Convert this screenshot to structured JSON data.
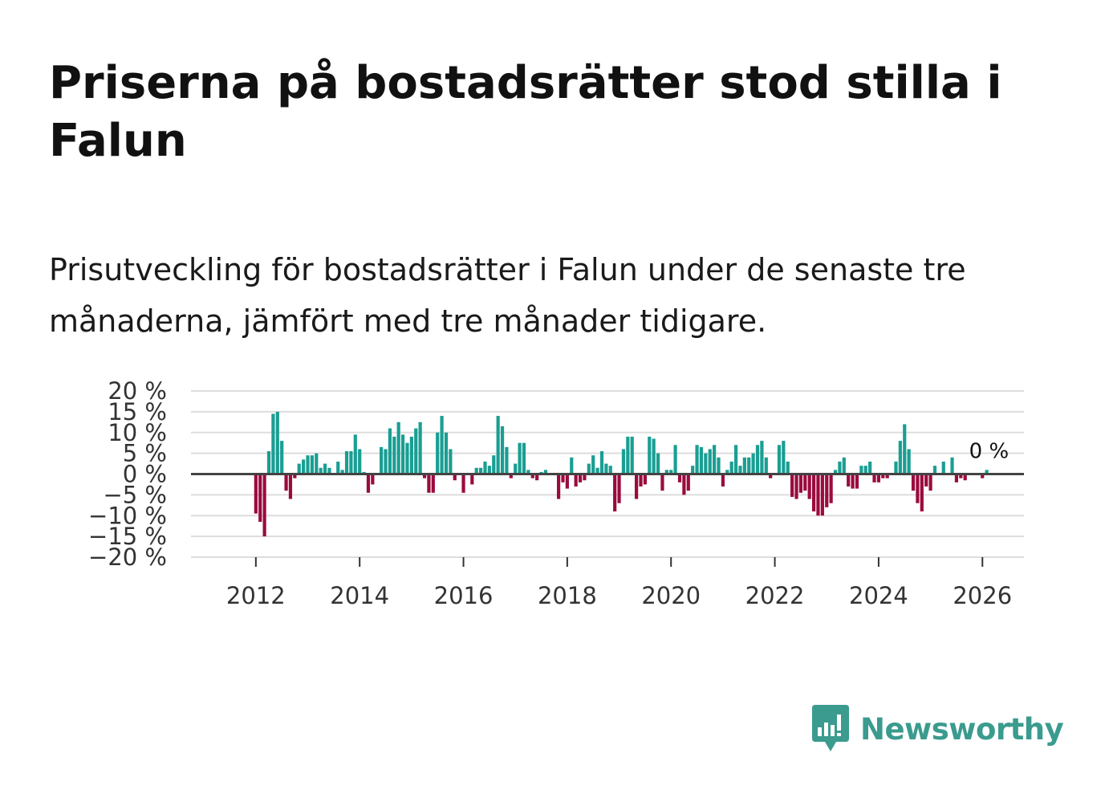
{
  "title": "Priserna på bostadsrätter stod stilla i Falun",
  "subtitle": "Prisutveckling för bostadsrätter i Falun under de senaste tre månaderna, jämfört med tre månader tidigare.",
  "brand": {
    "name": "Newsworthy",
    "icon": "newsworthy-logo-icon"
  },
  "colors": {
    "positive": "#1a9e93",
    "negative": "#9a0b3e",
    "grid": "#dddddd",
    "zero_line": "#444444",
    "brand": "#3a9b8e"
  },
  "chart_data": {
    "type": "bar",
    "title": "",
    "xlabel": "",
    "ylabel": "",
    "ylim": [
      -20,
      20
    ],
    "xlim": [
      2010.75,
      2026.8
    ],
    "y_ticks": [
      20,
      15,
      10,
      5,
      0,
      -5,
      -10,
      -15,
      -20
    ],
    "y_tick_labels": [
      "20 %",
      "15 %",
      "10 %",
      "5 %",
      "0 %",
      "−5 %",
      "−10 %",
      "−15 %",
      "−20 %"
    ],
    "x_ticks": [
      2012,
      2014,
      2016,
      2018,
      2020,
      2022,
      2024,
      2026
    ],
    "x_tick_labels": [
      "2012",
      "2014",
      "2016",
      "2018",
      "2020",
      "2022",
      "2024",
      "2026"
    ],
    "start": "2012-01",
    "frequency": "monthly",
    "values": [
      -9.5,
      -11.5,
      -15,
      5.5,
      14.5,
      15,
      8,
      -4,
      -6,
      -1,
      2.5,
      3.5,
      4.5,
      4.5,
      5,
      1.5,
      2.5,
      1.5,
      0,
      3,
      1,
      5.5,
      5.5,
      9.5,
      6,
      0.5,
      -4.5,
      -2.5,
      0,
      6.5,
      6,
      11,
      9,
      12.5,
      9.5,
      7.5,
      9,
      11,
      12.5,
      -1,
      -4.5,
      -4.5,
      10,
      14,
      10,
      6,
      -1.5,
      0,
      -4.5,
      0,
      -2.5,
      1.5,
      1.5,
      3,
      2,
      4.5,
      14,
      11.5,
      6.5,
      -1,
      2.5,
      7.5,
      7.5,
      1,
      -1,
      -1.5,
      0.5,
      1,
      0,
      0,
      -6,
      -2,
      -3.5,
      4,
      -3,
      -2,
      -1.5,
      2.5,
      4.5,
      1.5,
      5.5,
      2.5,
      2,
      -9,
      -7,
      6,
      9,
      9,
      -6,
      -3,
      -2.5,
      9,
      8.5,
      5,
      -4,
      1,
      1,
      7,
      -2,
      -5,
      -4,
      2,
      7,
      6.5,
      5,
      6,
      7,
      4,
      -3,
      1,
      3,
      7,
      2,
      4,
      4,
      5,
      7,
      8,
      4,
      -1,
      0,
      7,
      8,
      3,
      -5.5,
      -6,
      -4.5,
      -4,
      -6,
      -9,
      -10,
      -10,
      -8,
      -7,
      1,
      3,
      4,
      -3,
      -3.5,
      -3.5,
      2,
      2,
      3,
      -2,
      -2,
      -1,
      -1,
      0,
      3,
      8,
      12,
      6,
      -4,
      -7,
      -9,
      -3,
      -4,
      2,
      0,
      3,
      0,
      4,
      -2,
      -1,
      -1.5,
      0,
      0,
      0,
      -1,
      1
    ]
  },
  "annotation": {
    "label": "0 %",
    "value": 0
  }
}
